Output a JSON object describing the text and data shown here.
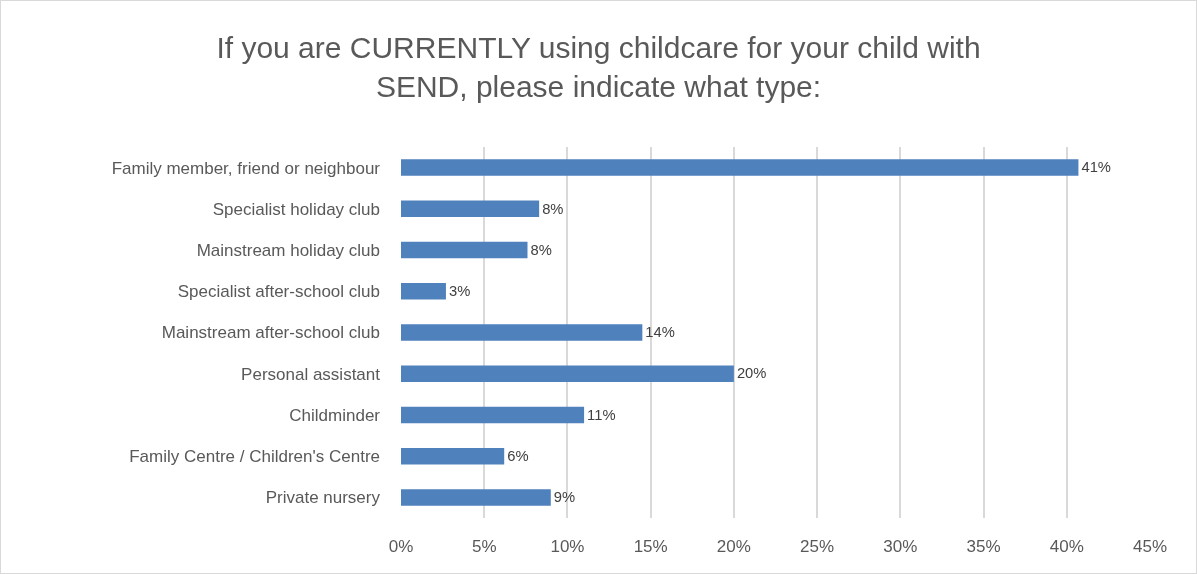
{
  "chart_data": {
    "type": "bar",
    "title": "If you are CURRENTLY using childcare for your child with SEND, please indicate what type:",
    "orientation": "horizontal",
    "categories": [
      "Family member, friend or neighbour",
      "Specialist holiday club",
      "Mainstream holiday club",
      "Specialist after-school club",
      "Mainstream after-school club",
      "Personal assistant",
      "Childminder",
      "Family Centre / Children's Centre",
      "Private nursery"
    ],
    "values": [
      40.7,
      8.3,
      7.6,
      2.7,
      14.5,
      20.0,
      11.0,
      6.2,
      9.0
    ],
    "value_labels": [
      "41%",
      "8%",
      "8%",
      "3%",
      "14%",
      "20%",
      "11%",
      "6%",
      "9%"
    ],
    "color": "#4f81bd",
    "xlim": [
      0,
      45
    ],
    "xticks": [
      {
        "value": 0,
        "label": "0%"
      },
      {
        "value": 5,
        "label": "5%"
      },
      {
        "value": 10,
        "label": "10%"
      },
      {
        "value": 15,
        "label": "15%"
      },
      {
        "value": 20,
        "label": "20%"
      },
      {
        "value": 25,
        "label": "25%"
      },
      {
        "value": 30,
        "label": "30%"
      },
      {
        "value": 35,
        "label": "35%"
      },
      {
        "value": 40,
        "label": "40%"
      },
      {
        "value": 45,
        "label": "45%"
      }
    ],
    "grid": "x"
  }
}
